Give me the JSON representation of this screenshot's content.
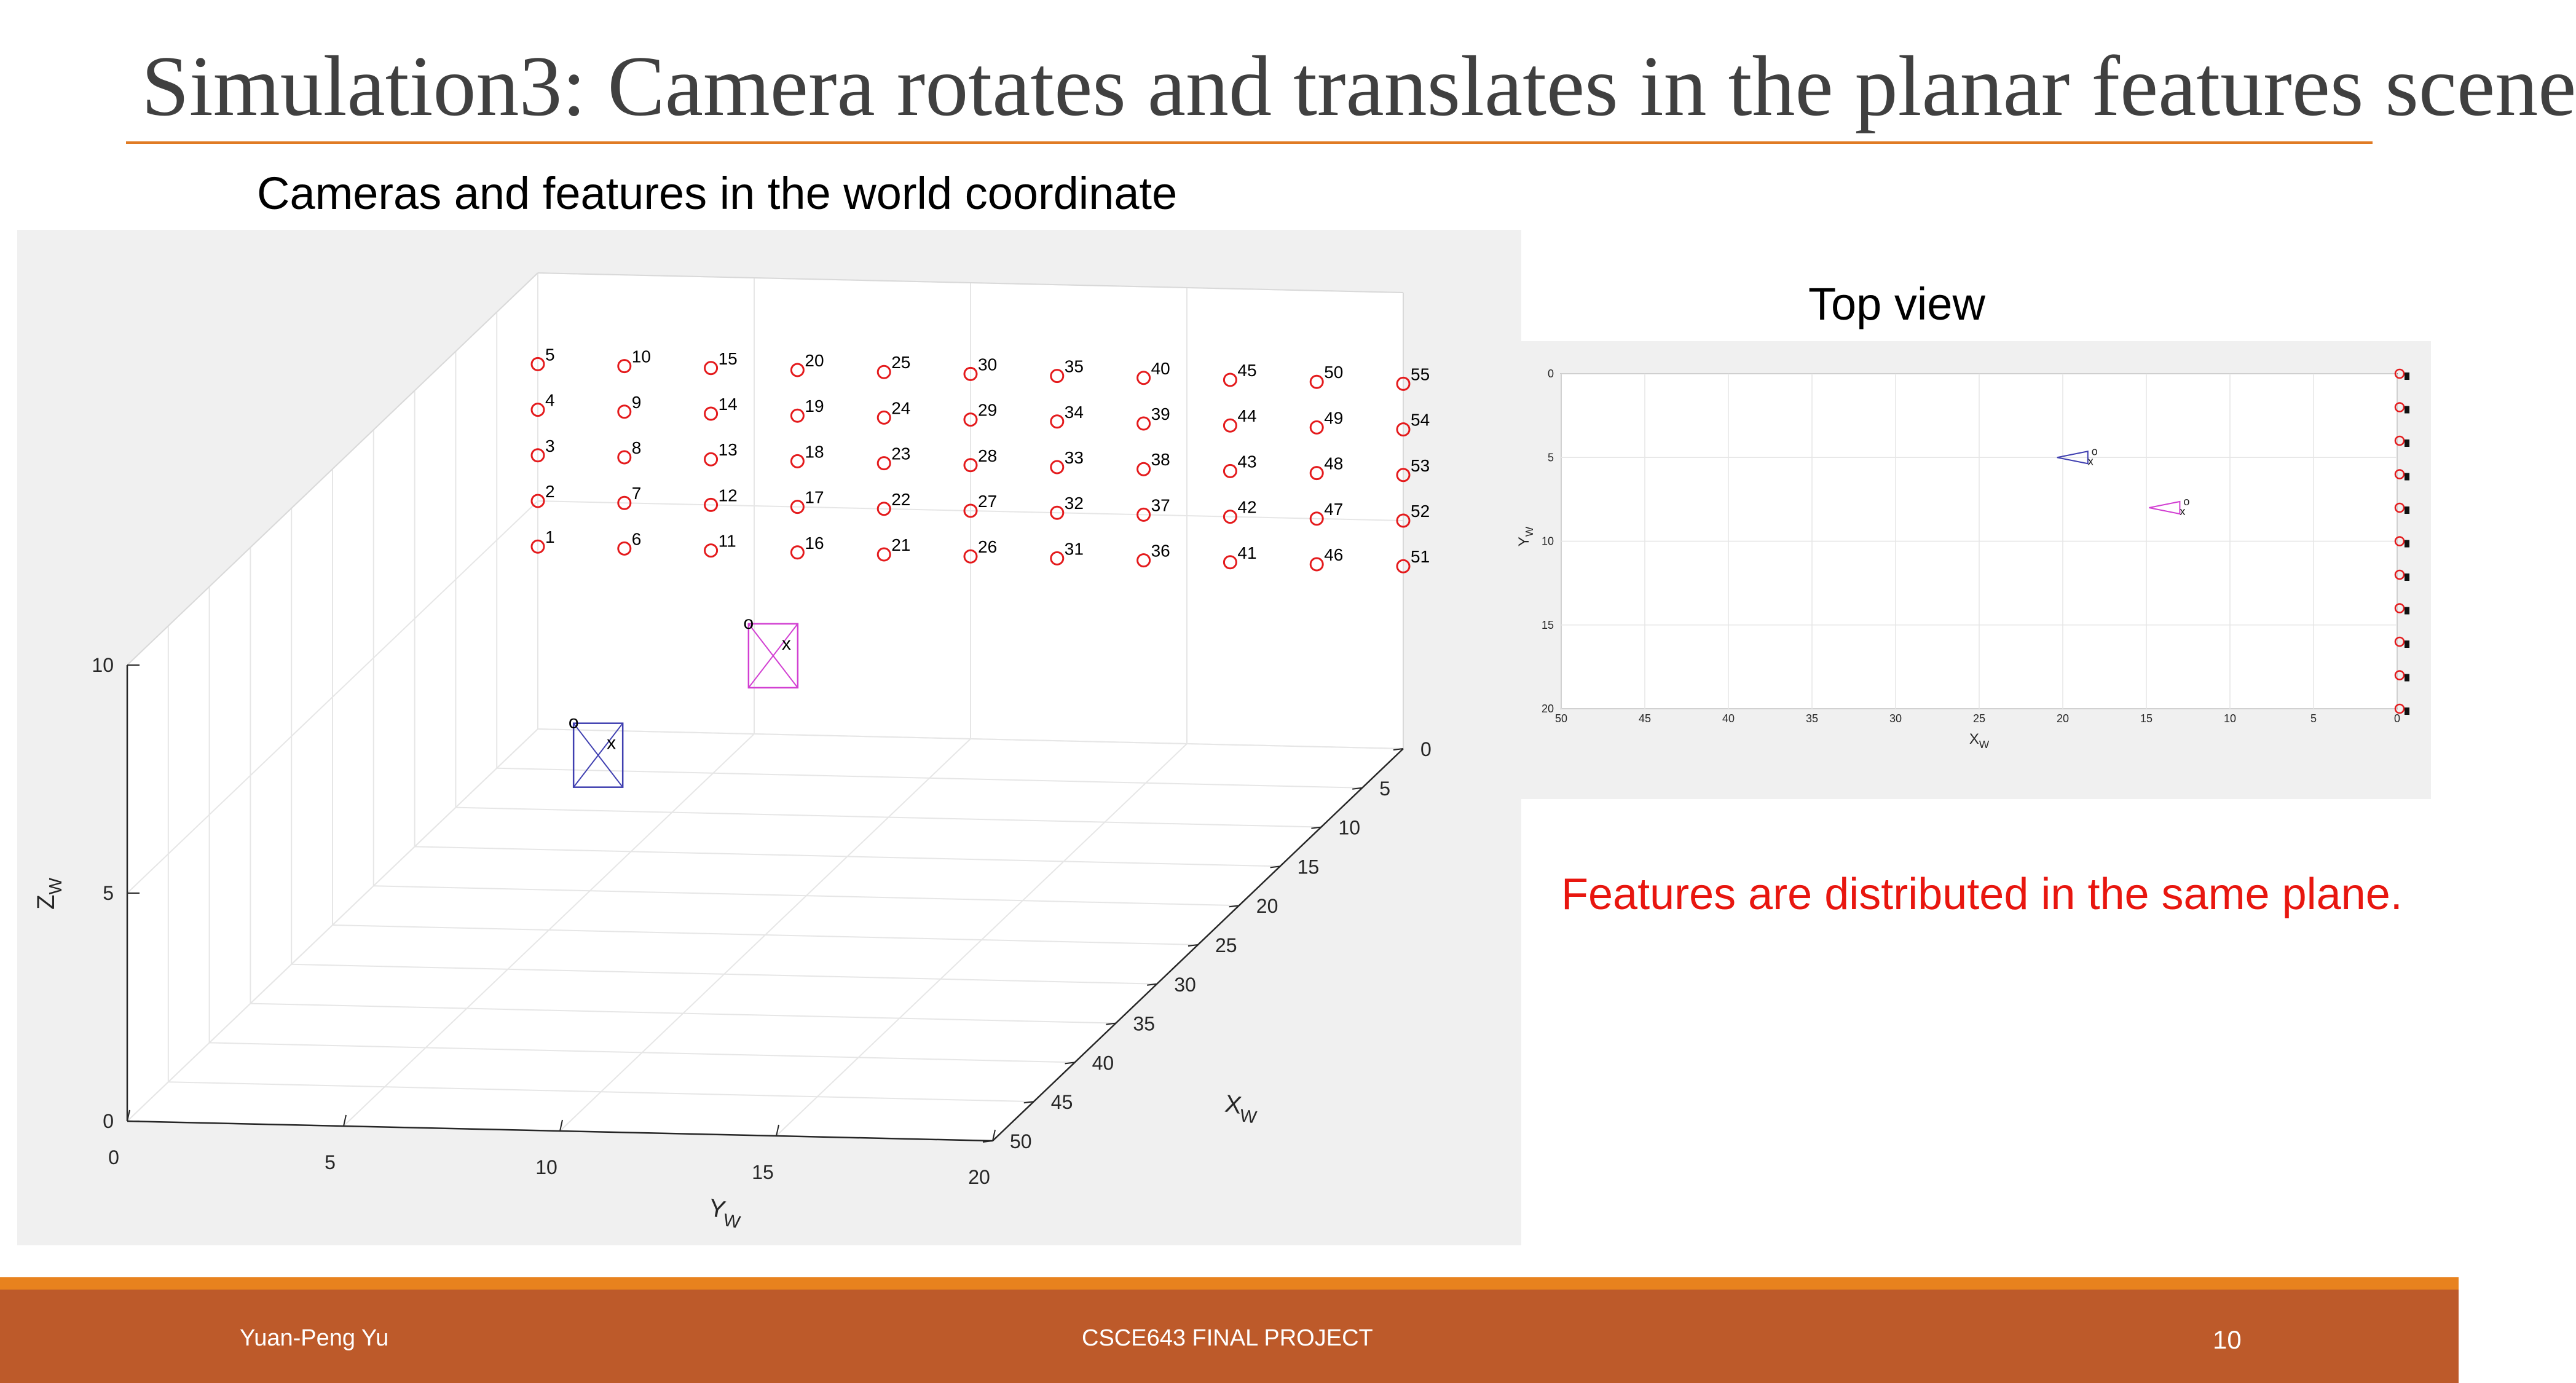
{
  "slide": {
    "title": "Simulation3: Camera rotates and translates in the planar features scene",
    "main_caption": "Cameras and features in the world coordinate",
    "top_view_caption": "Top view",
    "note": "Features are distributed in the same plane.",
    "footer": {
      "author": "Yuan-Peng Yu",
      "course": "CSCE643  FINAL PROJECT",
      "page": "10"
    }
  },
  "colors": {
    "accent": "#e07b24",
    "footer": "#bd5a2a",
    "feature_marker": "#e41a1c",
    "camera1": "#3f3fb0",
    "camera2": "#d23fd2",
    "note": "#e8160f"
  },
  "chart_data": [
    {
      "type": "scatter",
      "title": "",
      "view": "3d",
      "xlabel": "X_W",
      "ylabel": "Y_W",
      "zlabel": "Z_W",
      "xlim": [
        0,
        50
      ],
      "ylim": [
        0,
        20
      ],
      "zlim": [
        0,
        10
      ],
      "x_ticks": [
        "0",
        "5",
        "10",
        "15",
        "20",
        "25",
        "30",
        "35",
        "40",
        "45",
        "50"
      ],
      "y_ticks": [
        "0",
        "5",
        "10",
        "15",
        "20"
      ],
      "z_ticks": [
        "0",
        "5",
        "10"
      ],
      "grid": true,
      "features": {
        "marker": "o",
        "plane": "x = 0",
        "columns_y": [
          0,
          2,
          4,
          6,
          8,
          10,
          12,
          14,
          16,
          18,
          20
        ],
        "rows_z": [
          4,
          5,
          6,
          7,
          8
        ],
        "labels": [
          [
            "1",
            "2",
            "3",
            "4",
            "5"
          ],
          [
            "6",
            "7",
            "8",
            "9",
            "10"
          ],
          [
            "11",
            "12",
            "13",
            "14",
            "15"
          ],
          [
            "16",
            "17",
            "18",
            "19",
            "20"
          ],
          [
            "21",
            "22",
            "23",
            "24",
            "25"
          ],
          [
            "26",
            "27",
            "28",
            "29",
            "30"
          ],
          [
            "31",
            "32",
            "33",
            "34",
            "35"
          ],
          [
            "36",
            "37",
            "38",
            "39",
            "40"
          ],
          [
            "41",
            "42",
            "43",
            "44",
            "45"
          ],
          [
            "46",
            "47",
            "48",
            "49",
            "50"
          ],
          [
            "51",
            "52",
            "53",
            "54",
            "55"
          ]
        ]
      },
      "cameras": [
        {
          "marker_o": "o",
          "marker_x": "x",
          "x": 19,
          "y": 5,
          "z": 2.8
        },
        {
          "marker_o": "o",
          "marker_x": "x",
          "x": 13.5,
          "y": 8,
          "z": 4.1
        }
      ]
    },
    {
      "type": "scatter",
      "title": "",
      "view": "top",
      "xlabel": "X_W",
      "ylabel": "Y_W",
      "xlim": [
        0,
        50
      ],
      "ylim": [
        0,
        20
      ],
      "x_reversed": true,
      "y_reversed": true,
      "x_ticks": [
        "50",
        "45",
        "40",
        "35",
        "30",
        "25",
        "20",
        "15",
        "10",
        "5",
        "0"
      ],
      "y_ticks": [
        "0",
        "5",
        "10",
        "15",
        "20"
      ],
      "grid": true,
      "cameras": [
        {
          "marker_o": "o",
          "marker_x": "x",
          "x": 18.5,
          "y": 5
        },
        {
          "marker_o": "o",
          "marker_x": "x",
          "x": 13,
          "y": 8
        }
      ]
    }
  ]
}
